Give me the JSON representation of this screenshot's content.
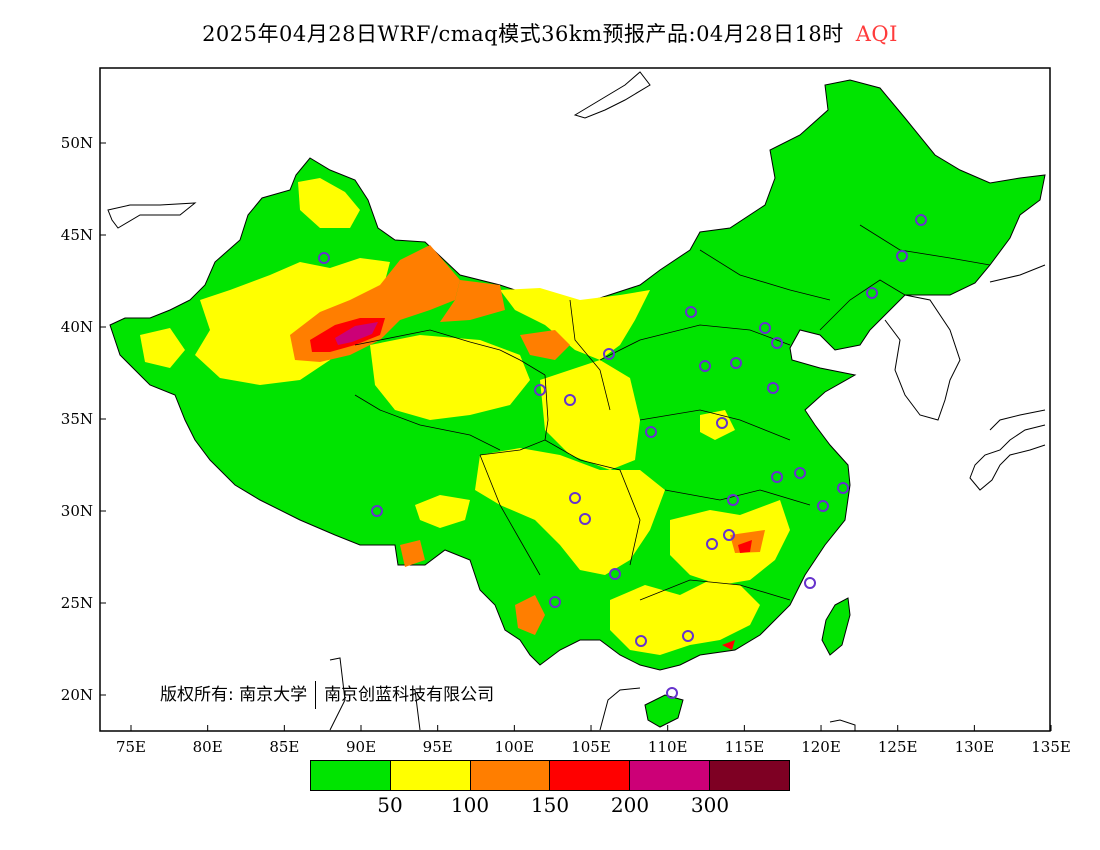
{
  "title": {
    "text": "2025年04月28日WRF/cmaq模式36km预报产品:04月28日18时",
    "variable": "AQI",
    "variable_color": "#ff3b3b"
  },
  "axes": {
    "lon_labels": [
      "75E",
      "80E",
      "85E",
      "90E",
      "95E",
      "100E",
      "105E",
      "110E",
      "115E",
      "120E",
      "125E",
      "130E",
      "135E"
    ],
    "lat_labels": [
      "20N",
      "25N",
      "30N",
      "35N",
      "40N",
      "45N",
      "50N"
    ]
  },
  "copyright": {
    "prefix": "版权所有: 南京大学",
    "org": "南京创蓝科技有限公司"
  },
  "legend": {
    "colors": [
      "#00e400",
      "#ffff00",
      "#ff7e00",
      "#ff0000",
      "#cc0077",
      "#7e0023"
    ],
    "labels": [
      "50",
      "100",
      "150",
      "200",
      "300"
    ]
  },
  "map_colors": {
    "land_bg": "#ffffff",
    "good": "#00e400",
    "moderate": "#ffff00",
    "usg": "#ff7e00",
    "unhealthy": "#ff0000",
    "very_unhealthy": "#cc0077",
    "station_marker": "#6633cc",
    "boundary": "#000000"
  }
}
